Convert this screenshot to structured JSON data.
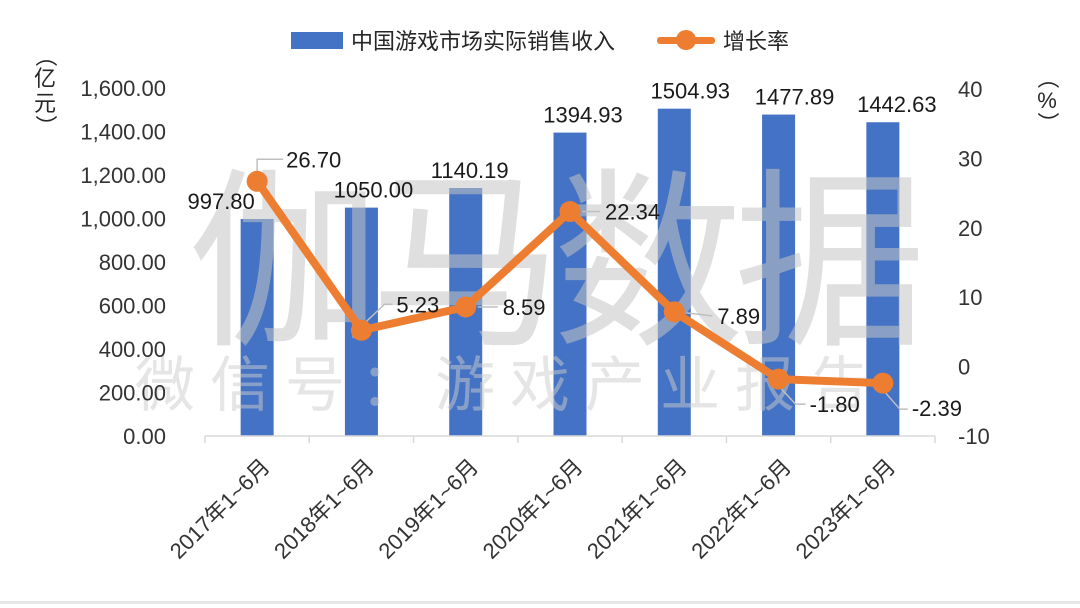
{
  "legend": {
    "series1": "中国游戏市场实际销售收入",
    "series2": "增长率"
  },
  "watermark": {
    "line1": "伽马数据",
    "line2": "微信号：游戏产业报告"
  },
  "colors": {
    "bar": "#4472C4",
    "line": "#ED7D31",
    "label_text": "#1a1a1a",
    "tick_text": "#333333",
    "axis_line": "#d9d9d9",
    "leader_line": "#bfbfbf"
  },
  "chart_data": {
    "type": "bar",
    "subtype": "bar-line-combo",
    "grid": false,
    "legend_position": "top",
    "categories": [
      "2017年1~6月",
      "2018年1~6月",
      "2019年1~6月",
      "2020年1~6月",
      "2021年1~6月",
      "2022年1~6月",
      "2023年1~6月"
    ],
    "series": [
      {
        "name": "中国游戏市场实际销售收入",
        "type": "bar",
        "axis": "left",
        "values": [
          997.8,
          1050.0,
          1140.19,
          1394.93,
          1504.93,
          1477.89,
          1442.63
        ],
        "labels": [
          "997.80",
          "1050.00",
          "1140.19",
          "1394.93",
          "1504.93",
          "1477.89",
          "1442.63"
        ]
      },
      {
        "name": "增长率",
        "type": "line",
        "axis": "right",
        "values": [
          26.7,
          5.23,
          8.59,
          22.34,
          7.89,
          -1.8,
          -2.39
        ],
        "labels": [
          "26.70",
          "5.23",
          "8.59",
          "22.34",
          "7.89",
          "-1.80",
          "-2.39"
        ]
      }
    ],
    "left_axis": {
      "unit": {
        "open": "（",
        "chars": [
          "亿",
          "元"
        ],
        "close": "）"
      },
      "ticks": [
        "1,600.00",
        "1,400.00",
        "1,200.00",
        "1,000.00",
        "800.00",
        "600.00",
        "400.00",
        "200.00",
        "0.00"
      ],
      "min": 0,
      "max": 1600
    },
    "right_axis": {
      "unit": {
        "open": "（",
        "chars": [
          "%"
        ],
        "close": "）"
      },
      "ticks": [
        "40",
        "30",
        "20",
        "10",
        "0",
        "-10"
      ],
      "min": -10,
      "max": 40
    }
  }
}
